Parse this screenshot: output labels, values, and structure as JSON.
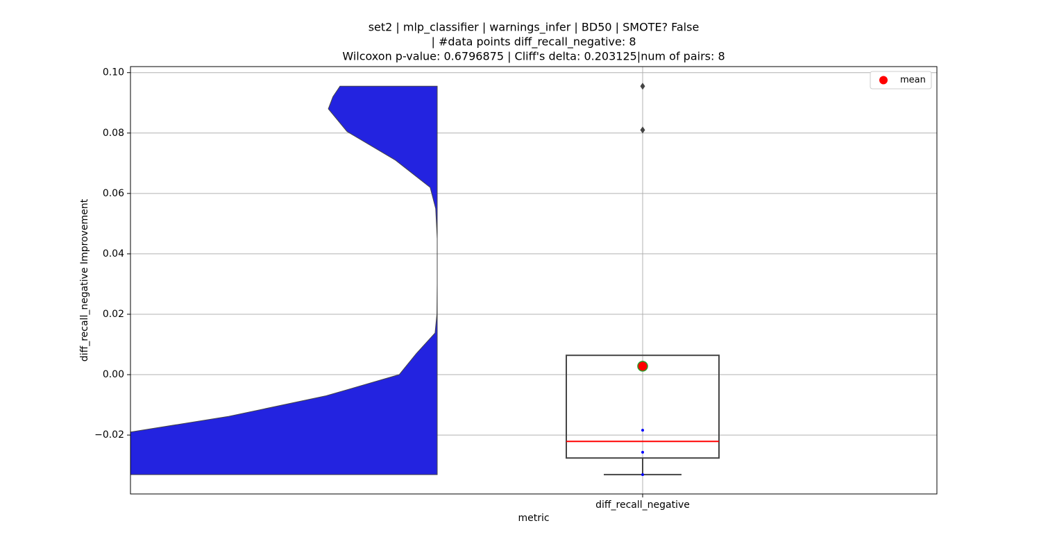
{
  "chart_data": {
    "type": "box",
    "title": [
      "set2 | mlp_classifier | warnings_infer | BD50 | SMOTE? False",
      "| #data points diff_recall_negative: 8",
      "Wilcoxon p-value: 0.6796875 | Cliff's delta: 0.203125|num of pairs: 8"
    ],
    "x_label": "metric",
    "y_label": "diff_recall_negative Improvement",
    "categories": [
      "diff_recall_negative"
    ],
    "box": {
      "q1": -0.0276,
      "median": -0.0221,
      "q3": 0.0064,
      "whisker_low": -0.0331,
      "mean": 0.0028,
      "outliers": [
        0.0955,
        0.081
      ],
      "color": "#444444",
      "median_color": "#ff0000"
    },
    "points": {
      "values": [
        -0.0184,
        -0.0257,
        -0.0331
      ],
      "color": "#0000ff"
    },
    "violin": {
      "y": [
        0.0955,
        0.092,
        0.088,
        0.0805,
        0.071,
        0.062,
        0.055,
        0.045,
        0.03,
        0.02,
        0.0138,
        0.007,
        0.0,
        -0.007,
        -0.0138,
        -0.019,
        -0.026,
        -0.0331
      ],
      "density": [
        0.317,
        0.34,
        0.355,
        0.294,
        0.136,
        0.023,
        0.005,
        0.0,
        0.0,
        0.001,
        0.007,
        0.068,
        0.124,
        0.362,
        0.679,
        1.0,
        1.3,
        1.6
      ],
      "color": "#2323e0"
    },
    "legend": {
      "label": "mean",
      "color": "#ff0000",
      "loc": "upper right"
    },
    "ylim": [
      -0.0395,
      0.102
    ],
    "yticks": [
      {
        "value": -0.02,
        "label": "−0.02"
      },
      {
        "value": 0,
        "label": "0.00"
      },
      {
        "value": 0.02,
        "label": "0.02"
      },
      {
        "value": 0.04,
        "label": "0.04"
      },
      {
        "value": 0.06,
        "label": "0.06"
      },
      {
        "value": 0.08,
        "label": "0.08"
      },
      {
        "value": 0.1,
        "label": "0.10"
      }
    ],
    "grid": true
  }
}
